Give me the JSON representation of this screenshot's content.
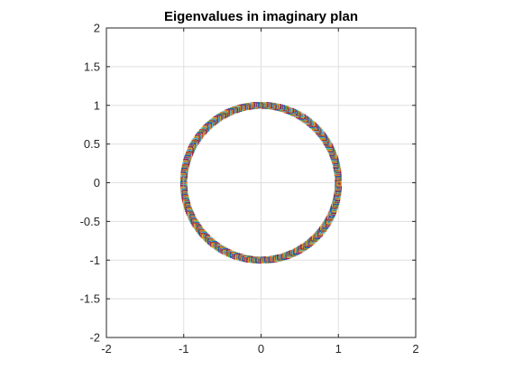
{
  "chart_data": {
    "type": "scatter",
    "title": "Eigenvalues in imaginary plan",
    "xlabel": "",
    "ylabel": "",
    "xlim": [
      -2,
      2
    ],
    "ylim": [
      -2,
      2
    ],
    "xticks": [
      -2,
      -1,
      0,
      1,
      2
    ],
    "yticks": [
      -2,
      -1.5,
      -1,
      -0.5,
      0,
      0.5,
      1,
      1.5,
      2
    ],
    "xtick_labels": [
      "-2",
      "-1",
      "0",
      "1",
      "2"
    ],
    "ytick_labels": [
      "-2",
      "-1.5",
      "-1",
      "-0.5",
      "0",
      "0.5",
      "1",
      "1.5",
      "2"
    ],
    "grid": true,
    "marker": "square",
    "series_description": "Many overlapping series of eigenvalues lying on the unit circle (|z| = 1)",
    "series_colors": [
      "#0072bd",
      "#d95319",
      "#edb120",
      "#7e2f8e",
      "#77ac30",
      "#4dbeee",
      "#a2142f"
    ],
    "series": [
      {
        "x": [
          1.0,
          0.988,
          0.951,
          0.891,
          0.809,
          0.707,
          0.588,
          0.454,
          0.309,
          0.156,
          0.0,
          -0.156,
          -0.309,
          -0.454,
          -0.588,
          -0.707,
          -0.809,
          -0.891,
          -0.951,
          -0.988,
          -1.0,
          -0.988,
          -0.951,
          -0.891,
          -0.809,
          -0.707,
          -0.588,
          -0.454,
          -0.309,
          -0.156,
          0.0,
          0.156,
          0.309,
          0.454,
          0.588,
          0.707,
          0.809,
          0.891,
          0.951,
          0.988
        ],
        "y": [
          0.0,
          0.156,
          0.309,
          0.454,
          0.588,
          0.707,
          0.809,
          0.891,
          0.951,
          0.988,
          1.0,
          0.988,
          0.951,
          0.891,
          0.809,
          0.707,
          0.588,
          0.454,
          0.309,
          0.156,
          0.0,
          -0.156,
          -0.309,
          -0.454,
          -0.588,
          -0.707,
          -0.809,
          -0.891,
          -0.951,
          -0.988,
          -1.0,
          -0.988,
          -0.951,
          -0.891,
          -0.809,
          -0.707,
          -0.588,
          -0.454,
          -0.309,
          -0.156
        ]
      }
    ]
  }
}
